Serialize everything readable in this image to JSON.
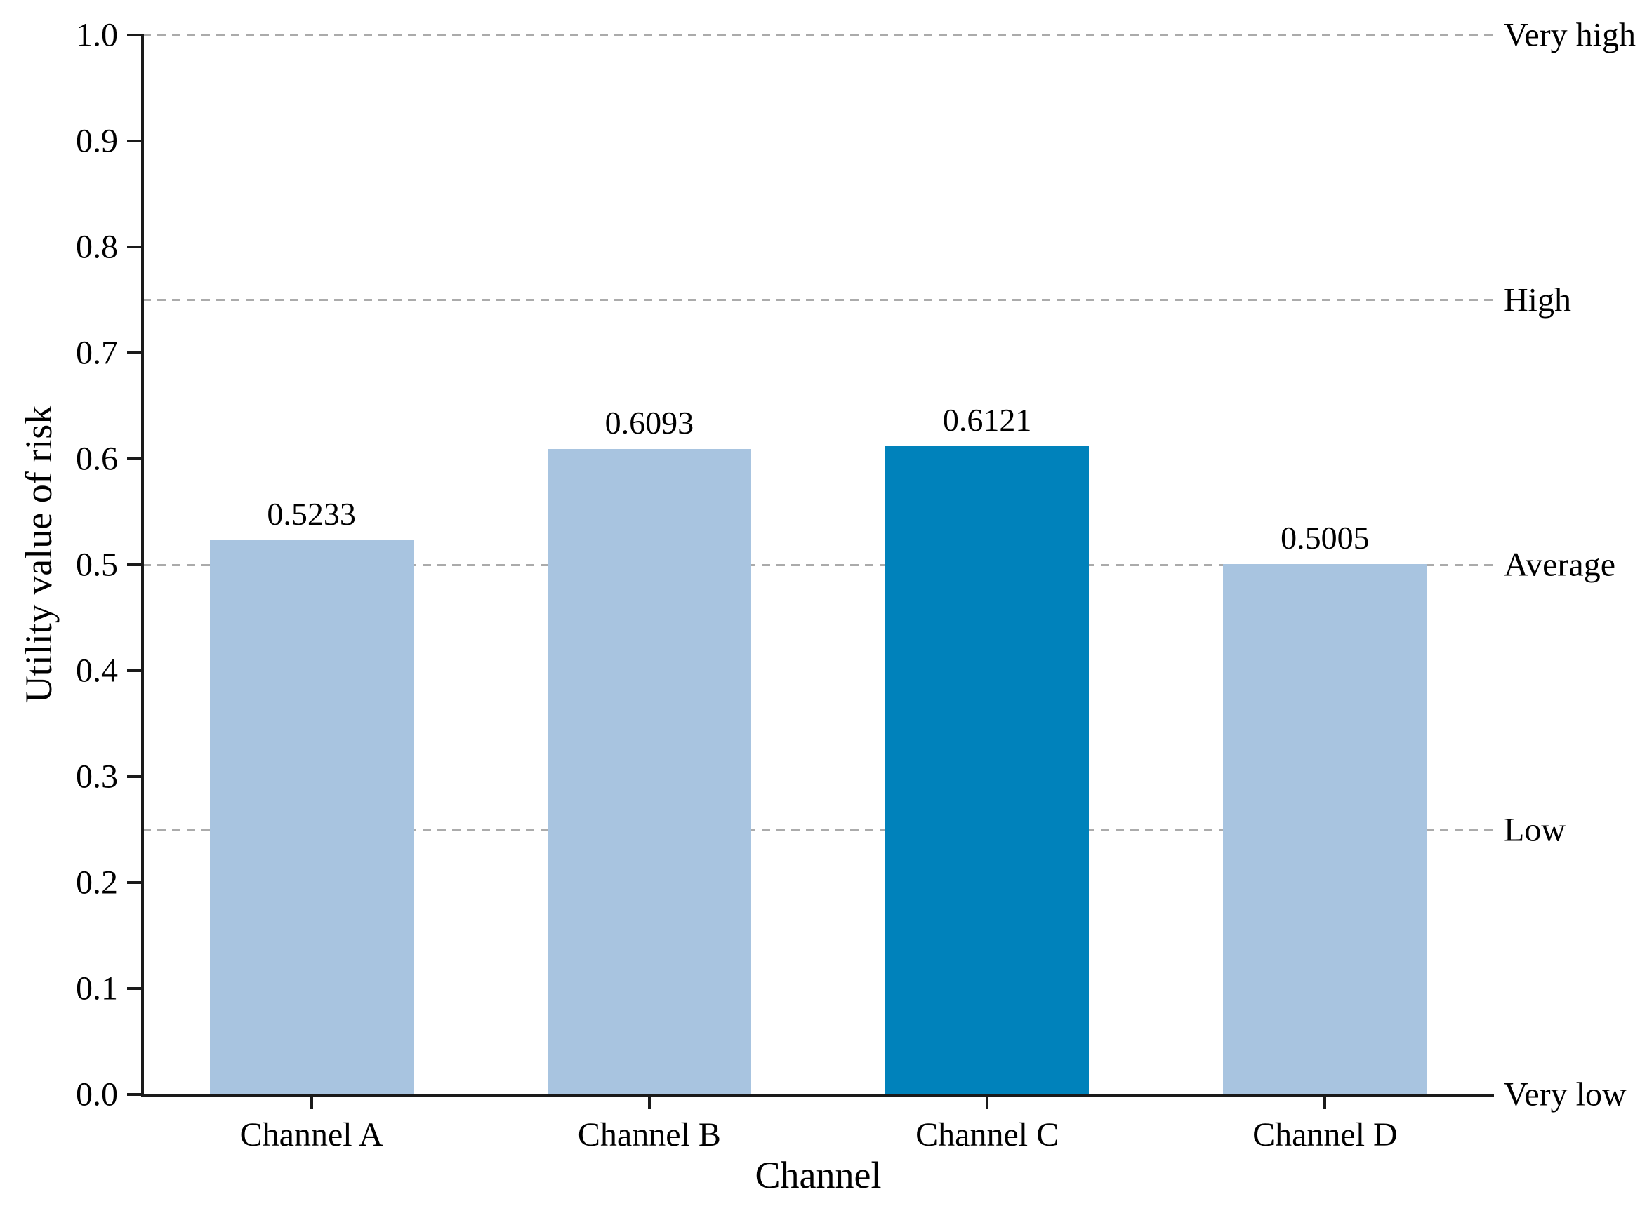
{
  "chart_data": {
    "type": "bar",
    "title": "",
    "xlabel": "Channel",
    "ylabel": "Utility value of risk",
    "categories": [
      "Channel A",
      "Channel B",
      "Channel C",
      "Channel D"
    ],
    "values": [
      0.5233,
      0.6093,
      0.6121,
      0.5005
    ],
    "value_labels": [
      "0.5233",
      "0.6093",
      "0.6121",
      "0.5005"
    ],
    "bar_colors": [
      "#A8C4E0",
      "#A8C4E0",
      "#0082BB",
      "#A8C4E0"
    ],
    "highlighted_bar": "Channel C",
    "ylim": [
      0.0,
      1.0
    ],
    "y_ticks": [
      "0.0",
      "0.1",
      "0.2",
      "0.3",
      "0.4",
      "0.5",
      "0.6",
      "0.7",
      "0.8",
      "0.9",
      "1.0"
    ],
    "reference_lines": [
      {
        "value": 1.0,
        "label": "Very high",
        "style": "dashed"
      },
      {
        "value": 0.75,
        "label": "High",
        "style": "dashed"
      },
      {
        "value": 0.5,
        "label": "Average",
        "style": "dashed"
      },
      {
        "value": 0.25,
        "label": "Low",
        "style": "dashed"
      },
      {
        "value": 0.0,
        "label": "Very low",
        "style": "solid"
      }
    ],
    "legend": "none",
    "grid": "dashed horizontal reference lines only",
    "colors": {
      "bar_default": "#A8C4E0",
      "bar_highlight": "#0082BB",
      "gridline": "#ABABAB",
      "axis": "#1A1A1A",
      "text": "#000000",
      "background": "#FFFFFF"
    }
  }
}
